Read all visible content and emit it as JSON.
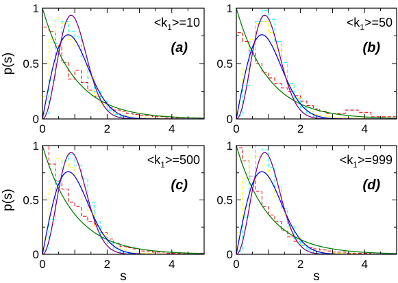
{
  "chart_data": [
    {
      "type": "line",
      "panel": "(a)",
      "annotation": {
        "prefix": "<k",
        "sub": "1",
        "suffix": ">=10"
      },
      "xlabel": "",
      "ylabel": "p(s)",
      "xlim": [
        0,
        5
      ],
      "ylim": [
        0,
        1
      ],
      "xticks": [
        "0",
        "2",
        "4"
      ],
      "yticks": [
        "0",
        "0.5",
        "1"
      ],
      "hist_x": [
        0,
        0.2,
        0.4,
        0.6,
        0.8,
        1.0,
        1.2,
        1.4,
        1.6,
        1.8,
        2.0,
        2.2,
        2.4,
        2.6,
        2.8,
        3.0,
        3.4,
        3.8,
        4.2,
        5.0
      ],
      "series": [
        {
          "style": "dashed-hist",
          "color": "#ff0000",
          "values": [
            0.83,
            0.79,
            0.66,
            0.51,
            0.36,
            0.44,
            0.33,
            0.26,
            0.2,
            0.15,
            0.1,
            0.08,
            0.07,
            0.05,
            0.04,
            0.03,
            0.02,
            0.01,
            0.01
          ]
        },
        {
          "style": "dashed-hist",
          "color": "#ffff00",
          "values": [
            0.2,
            0.72,
            0.91,
            0.86,
            0.72,
            0.66,
            0.48,
            0.38,
            0.21,
            0.13,
            0.08,
            0.05,
            0.03,
            0.02,
            0.01,
            0.01,
            0.005,
            0.0,
            0.0
          ]
        },
        {
          "style": "dashed-hist",
          "color": "#00ffff",
          "values": [
            0.05,
            0.35,
            0.68,
            0.88,
            0.79,
            0.74,
            0.56,
            0.37,
            0.25,
            0.16,
            0.08,
            0.04,
            0.02,
            0.01,
            0.005,
            0.0,
            0.0,
            0.0,
            0.0
          ]
        }
      ],
      "curves": [
        {
          "name": "",
          "color": "#008000",
          "formula": "poisson"
        },
        {
          "name": "",
          "color": "#0000ff",
          "formula": "goe"
        },
        {
          "name": "",
          "color": "#800080",
          "formula": "gue"
        }
      ]
    },
    {
      "type": "line",
      "panel": "(b)",
      "annotation": {
        "prefix": "<k",
        "sub": "1",
        "suffix": ">=50"
      },
      "xlabel": "",
      "ylabel": "",
      "xlim": [
        0,
        5
      ],
      "ylim": [
        0,
        1
      ],
      "xticks": [
        "0",
        "2",
        "4"
      ],
      "yticks": [
        "0",
        "0.5",
        "1"
      ],
      "hist_x": [
        0,
        0.2,
        0.4,
        0.6,
        0.8,
        1.0,
        1.2,
        1.4,
        1.6,
        1.8,
        2.0,
        2.2,
        2.4,
        2.6,
        2.8,
        3.0,
        3.4,
        3.8,
        4.2,
        5.0
      ],
      "series": [
        {
          "style": "dashed-hist",
          "color": "#ff0000",
          "values": [
            0.78,
            0.7,
            0.6,
            0.5,
            0.42,
            0.37,
            0.32,
            0.28,
            0.25,
            0.21,
            0.16,
            0.12,
            0.09,
            0.07,
            0.05,
            0.05,
            0.08,
            0.06,
            0.02
          ]
        },
        {
          "style": "dashed-hist",
          "color": "#ffff00",
          "values": [
            0.1,
            0.45,
            0.72,
            0.86,
            0.88,
            0.78,
            0.62,
            0.44,
            0.3,
            0.19,
            0.11,
            0.07,
            0.04,
            0.03,
            0.02,
            0.01,
            0.01,
            0.005,
            0.0
          ]
        },
        {
          "style": "dashed-hist",
          "color": "#00ffff",
          "values": [
            0.03,
            0.3,
            0.62,
            0.88,
            0.98,
            0.9,
            0.7,
            0.51,
            0.32,
            0.18,
            0.1,
            0.05,
            0.02,
            0.01,
            0.005,
            0.0,
            0.0,
            0.0,
            0.0
          ]
        }
      ],
      "curves": [
        {
          "name": "",
          "color": "#008000",
          "formula": "poisson"
        },
        {
          "name": "",
          "color": "#0000ff",
          "formula": "goe"
        },
        {
          "name": "",
          "color": "#800080",
          "formula": "gue"
        }
      ]
    },
    {
      "type": "line",
      "panel": "(c)",
      "annotation": {
        "prefix": "<k",
        "sub": "1",
        "suffix": ">=500"
      },
      "xlabel": "s",
      "ylabel": "p(s)",
      "xlim": [
        0,
        5
      ],
      "ylim": [
        0,
        1
      ],
      "xticks": [
        "0",
        "2",
        "4"
      ],
      "yticks": [
        "0",
        "0.5",
        "1"
      ],
      "hist_x": [
        0,
        0.2,
        0.4,
        0.6,
        0.8,
        1.0,
        1.2,
        1.4,
        1.6,
        1.8,
        2.0,
        2.2,
        2.4,
        2.6,
        2.8,
        3.0,
        3.4,
        3.8,
        4.2,
        5.0
      ],
      "series": [
        {
          "style": "dashed-hist",
          "color": "#ff0000",
          "values": [
            1.02,
            0.83,
            0.68,
            0.6,
            0.48,
            0.44,
            0.35,
            0.3,
            0.26,
            0.2,
            0.14,
            0.1,
            0.07,
            0.06,
            0.05,
            0.03,
            0.02,
            0.01,
            0.01
          ]
        },
        {
          "style": "dashed-hist",
          "color": "#ffff00",
          "values": [
            0.14,
            0.6,
            0.88,
            0.86,
            0.8,
            0.7,
            0.5,
            0.4,
            0.26,
            0.18,
            0.1,
            0.06,
            0.04,
            0.02,
            0.01,
            0.01,
            0.005,
            0.0,
            0.0
          ]
        },
        {
          "style": "dashed-hist",
          "color": "#00ffff",
          "values": [
            0.04,
            0.32,
            0.67,
            0.86,
            0.92,
            0.82,
            0.7,
            0.48,
            0.3,
            0.15,
            0.1,
            0.05,
            0.02,
            0.01,
            0.005,
            0.0,
            0.0,
            0.0,
            0.0
          ]
        }
      ],
      "curves": [
        {
          "name": "",
          "color": "#008000",
          "formula": "poisson"
        },
        {
          "name": "",
          "color": "#0000ff",
          "formula": "goe"
        },
        {
          "name": "",
          "color": "#800080",
          "formula": "gue"
        }
      ]
    },
    {
      "type": "line",
      "panel": "(d)",
      "annotation": {
        "prefix": "<k",
        "sub": "1",
        "suffix": ">=999"
      },
      "xlabel": "s",
      "ylabel": "",
      "xlim": [
        0,
        5
      ],
      "ylim": [
        0,
        1
      ],
      "xticks": [
        "0",
        "2",
        "4"
      ],
      "yticks": [
        "0",
        "0.5",
        "1"
      ],
      "hist_x": [
        0,
        0.2,
        0.4,
        0.6,
        0.8,
        1.0,
        1.2,
        1.4,
        1.6,
        1.8,
        2.0,
        2.2,
        2.4,
        2.6,
        2.8,
        3.0,
        3.4,
        3.8,
        4.2,
        5.0
      ],
      "series": [
        {
          "style": "dashed-hist",
          "color": "#ff0000",
          "values": [
            0.98,
            0.86,
            0.72,
            0.58,
            0.44,
            0.36,
            0.3,
            0.22,
            0.16,
            0.12,
            0.08,
            0.06,
            0.05,
            0.04,
            0.03,
            0.02,
            0.01,
            0.01,
            0.0
          ]
        },
        {
          "style": "dashed-hist",
          "color": "#ffff00",
          "values": [
            0.2,
            0.7,
            1.0,
            0.9,
            0.82,
            0.68,
            0.52,
            0.36,
            0.24,
            0.15,
            0.09,
            0.05,
            0.03,
            0.02,
            0.01,
            0.01,
            0.005,
            0.0,
            0.0
          ]
        },
        {
          "style": "dashed-hist",
          "color": "#00ffff",
          "values": [
            0.03,
            0.34,
            0.72,
            1.0,
            0.96,
            0.8,
            0.62,
            0.42,
            0.26,
            0.14,
            0.08,
            0.04,
            0.02,
            0.01,
            0.005,
            0.0,
            0.0,
            0.0,
            0.0
          ]
        }
      ],
      "curves": [
        {
          "name": "",
          "color": "#008000",
          "formula": "poisson"
        },
        {
          "name": "",
          "color": "#0000ff",
          "formula": "goe"
        },
        {
          "name": "",
          "color": "#800080",
          "formula": "gue"
        }
      ]
    }
  ]
}
